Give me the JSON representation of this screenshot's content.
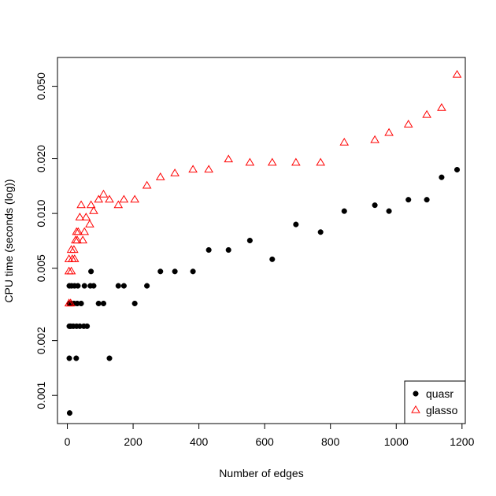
{
  "chart_data": {
    "type": "scatter",
    "title": "",
    "xlabel": "Number of edges",
    "ylabel": "CPU time (seconds (log))",
    "xlim": [
      -30,
      1210
    ],
    "ylim": [
      0.0007,
      0.072
    ],
    "ylog": true,
    "grid": false,
    "legend_position": "bottom-right",
    "xticks": [
      0,
      200,
      400,
      600,
      800,
      1000,
      1200
    ],
    "xtick_labels": [
      "0",
      "200",
      "400",
      "600",
      "800",
      "1000",
      "1200"
    ],
    "yticks": [
      0.001,
      0.002,
      0.005,
      0.01,
      0.02,
      0.05
    ],
    "ytick_labels": [
      "0.001",
      "0.002",
      "0.005",
      "0.010",
      "0.020",
      "0.050"
    ],
    "series": [
      {
        "name": "quasr",
        "marker": "filled-circle",
        "color": "#000000",
        "points": [
          [
            7,
            0.0008
          ],
          [
            6,
            0.0016
          ],
          [
            6,
            0.0024
          ],
          [
            6,
            0.0032
          ],
          [
            6,
            0.004
          ],
          [
            10,
            0.0024
          ],
          [
            12,
            0.0032
          ],
          [
            13,
            0.004
          ],
          [
            18,
            0.0024
          ],
          [
            20,
            0.0032
          ],
          [
            22,
            0.004
          ],
          [
            27,
            0.0016
          ],
          [
            28,
            0.0024
          ],
          [
            30,
            0.0032
          ],
          [
            32,
            0.004
          ],
          [
            38,
            0.0024
          ],
          [
            42,
            0.0032
          ],
          [
            50,
            0.0024
          ],
          [
            52,
            0.004
          ],
          [
            60,
            0.0024
          ],
          [
            70,
            0.004
          ],
          [
            72,
            0.0048
          ],
          [
            80,
            0.004
          ],
          [
            95,
            0.0032
          ],
          [
            110,
            0.0032
          ],
          [
            128,
            0.0016
          ],
          [
            155,
            0.004
          ],
          [
            172,
            0.004
          ],
          [
            205,
            0.0032
          ],
          [
            242,
            0.004
          ],
          [
            283,
            0.0048
          ],
          [
            327,
            0.0048
          ],
          [
            382,
            0.0048
          ],
          [
            430,
            0.0063
          ],
          [
            490,
            0.0063
          ],
          [
            555,
            0.0071
          ],
          [
            623,
            0.0056
          ],
          [
            695,
            0.0087
          ],
          [
            770,
            0.0079
          ],
          [
            842,
            0.0103
          ],
          [
            935,
            0.0111
          ],
          [
            978,
            0.0103
          ],
          [
            1037,
            0.0119
          ],
          [
            1093,
            0.0119
          ],
          [
            1138,
            0.0158
          ],
          [
            1185,
            0.0174
          ]
        ]
      },
      {
        "name": "glasso",
        "marker": "open-triangle",
        "color": "#ff0000",
        "points": [
          [
            5,
            0.0032
          ],
          [
            5,
            0.0048
          ],
          [
            5,
            0.0056
          ],
          [
            10,
            0.0032
          ],
          [
            12,
            0.0048
          ],
          [
            12,
            0.0063
          ],
          [
            15,
            0.0056
          ],
          [
            20,
            0.0063
          ],
          [
            22,
            0.0056
          ],
          [
            25,
            0.0071
          ],
          [
            28,
            0.0079
          ],
          [
            30,
            0.0071
          ],
          [
            33,
            0.0079
          ],
          [
            38,
            0.0095
          ],
          [
            42,
            0.0111
          ],
          [
            47,
            0.0071
          ],
          [
            52,
            0.0079
          ],
          [
            57,
            0.0095
          ],
          [
            68,
            0.0087
          ],
          [
            72,
            0.0111
          ],
          [
            80,
            0.0103
          ],
          [
            95,
            0.0119
          ],
          [
            110,
            0.0127
          ],
          [
            128,
            0.0119
          ],
          [
            155,
            0.0111
          ],
          [
            172,
            0.0119
          ],
          [
            205,
            0.0119
          ],
          [
            242,
            0.0142
          ],
          [
            283,
            0.0158
          ],
          [
            327,
            0.0166
          ],
          [
            382,
            0.0174
          ],
          [
            430,
            0.0174
          ],
          [
            490,
            0.0198
          ],
          [
            555,
            0.019
          ],
          [
            623,
            0.019
          ],
          [
            695,
            0.019
          ],
          [
            770,
            0.019
          ],
          [
            842,
            0.0245
          ],
          [
            935,
            0.0253
          ],
          [
            978,
            0.0277
          ],
          [
            1037,
            0.0308
          ],
          [
            1093,
            0.0348
          ],
          [
            1138,
            0.038
          ],
          [
            1185,
            0.0578
          ]
        ]
      }
    ]
  }
}
